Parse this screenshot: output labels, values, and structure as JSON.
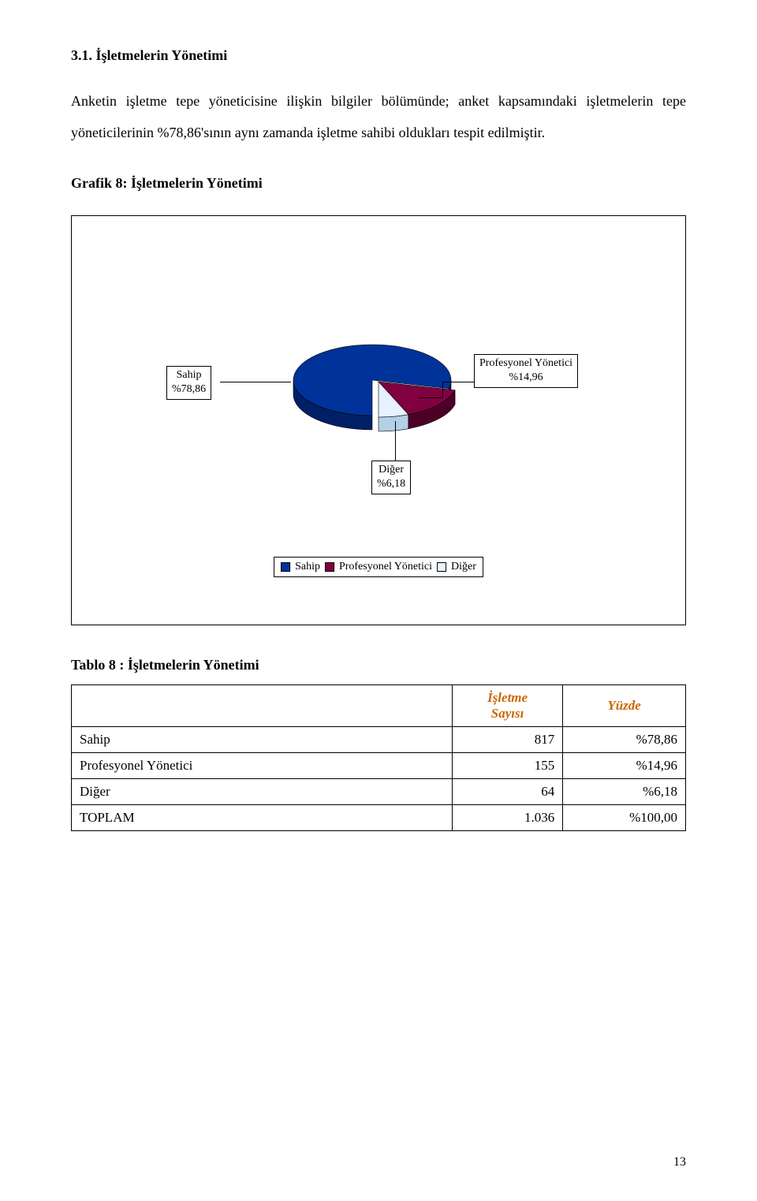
{
  "section_heading": "3.1. İşletmelerin Yönetimi",
  "body_para": "Anketin işletme tepe yöneticisine ilişkin bilgiler bölümünde; anket kapsamındaki işletmelerin tepe yöneticilerinin %78,86'sının aynı zamanda işletme sahibi oldukları tespit edilmiştir.",
  "chart_heading": "Grafik 8: İşletmelerin Yönetimi",
  "chart": {
    "type": "pie",
    "segments": [
      {
        "name": "Sahip",
        "value": 78.86,
        "label": "Sahip\n%78,86",
        "color": "#003399"
      },
      {
        "name": "Profesyonel Yönetici",
        "value": 14.96,
        "label": "Profesyonel Yönetici\n%14,96",
        "color": "#800040"
      },
      {
        "name": "Diğer",
        "value": 6.18,
        "label": "Diğer\n%6,18",
        "color": "#e6f2ff"
      }
    ],
    "legend": [
      "Sahip",
      "Profesyonel Yönetici",
      "Diğer"
    ],
    "legend_colors": [
      "#003399",
      "#800040",
      "#e6f2ff"
    ],
    "background_color": "#ffffff",
    "border_color": "#000000",
    "label_fontsize": 14,
    "side_color_dark": "#001f66"
  },
  "table_heading": "Tablo 8 : İşletmelerin Yönetimi",
  "table": {
    "columns": [
      "",
      "İşletme\nSayısı",
      "Yüzde"
    ],
    "header_color": "#cc6600",
    "rows": [
      [
        "Sahip",
        "817",
        "%78,86"
      ],
      [
        "Profesyonel Yönetici",
        "155",
        "%14,96"
      ],
      [
        "Diğer",
        "64",
        "%6,18"
      ],
      [
        "TOPLAM",
        "1.036",
        "%100,00"
      ]
    ]
  },
  "page_number": "13"
}
